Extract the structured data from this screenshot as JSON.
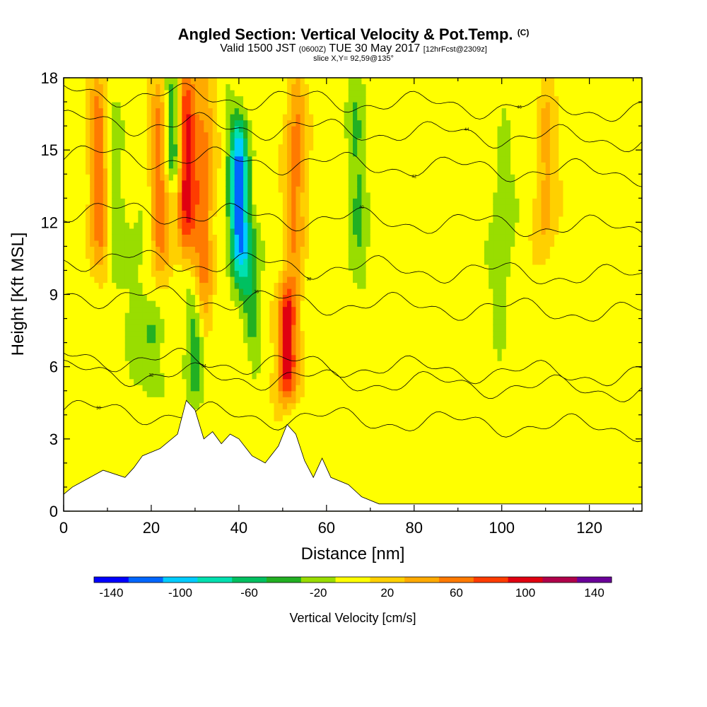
{
  "header": {
    "title": "Angled Section: Vertical Velocity & Pot.Temp.",
    "title_units": "(C)",
    "valid_main": "Valid 1500 JST",
    "valid_utc": "(0600Z)",
    "valid_date": "TUE 30 May 2017",
    "forecast": "[12hrFcst@2309z]",
    "slice": "slice X,Y= 92,59@135°"
  },
  "chart_data": {
    "type": "heatmap",
    "xlabel": "Distance [nm]",
    "ylabel": "Height [Kft MSL]",
    "xlim": [
      0,
      132
    ],
    "ylim": [
      0,
      18
    ],
    "x_ticks": [
      "0",
      "20",
      "40",
      "60",
      "80",
      "100",
      "120"
    ],
    "y_ticks": [
      "0",
      "3",
      "6",
      "9",
      "12",
      "15",
      "18"
    ],
    "colorbar": {
      "label": "Vertical Velocity [cm/s]",
      "tick_labels": [
        "-140",
        "-100",
        "-60",
        "-20",
        "20",
        "60",
        "100",
        "140"
      ],
      "levels": [
        -150,
        -130,
        -110,
        -90,
        -70,
        -50,
        -30,
        -10,
        10,
        30,
        50,
        70,
        90,
        110,
        130,
        150
      ],
      "colors": [
        "#0000ff",
        "#0066ff",
        "#00ccff",
        "#00e0b0",
        "#00c060",
        "#22b022",
        "#99dd00",
        "#ffff00",
        "#ffd000",
        "#ffaa00",
        "#ff7a00",
        "#ff3c00",
        "#e00010",
        "#b0004a",
        "#6a0099"
      ]
    },
    "vertical_velocity_features": [
      {
        "x": 8,
        "z_from": 10,
        "z_to": 18,
        "w": 60
      },
      {
        "x": 12,
        "z_from": 9,
        "z_to": 18,
        "w": -20
      },
      {
        "x": 17,
        "z_from": 6,
        "z_to": 12,
        "w": -20
      },
      {
        "x": 20,
        "z_from": 5,
        "z_to": 8,
        "w": -30
      },
      {
        "x": 22,
        "z_from": 10,
        "z_to": 18,
        "w": 60
      },
      {
        "x": 25,
        "z_from": 14,
        "z_to": 18,
        "w": -60
      },
      {
        "x": 28,
        "z_from": 11,
        "z_to": 18,
        "w": 100
      },
      {
        "x": 30,
        "z_from": 5,
        "z_to": 9,
        "w": -40
      },
      {
        "x": 32,
        "z_from": 8,
        "z_to": 18,
        "w": 60
      },
      {
        "x": 40,
        "z_from": 10,
        "z_to": 16,
        "w": -120
      },
      {
        "x": 43,
        "z_from": 7,
        "z_to": 12,
        "w": -40
      },
      {
        "x": 51,
        "z_from": 5,
        "z_to": 9,
        "w": 110
      },
      {
        "x": 53,
        "z_from": 10,
        "z_to": 18,
        "w": 60
      },
      {
        "x": 67,
        "z_from": 9,
        "z_to": 18,
        "w": -30
      },
      {
        "x": 100,
        "z_from": 8,
        "z_to": 15,
        "w": -30
      },
      {
        "x": 110,
        "z_from": 11,
        "z_to": 17,
        "w": 40
      }
    ],
    "theta_contours": [
      {
        "label": "30",
        "level_kft": 4.2
      },
      {
        "label": "32",
        "level_kft": 5.8
      },
      {
        "label": "34",
        "level_kft": 6.4
      },
      {
        "label": "36",
        "level_kft": 9.0
      },
      {
        "label": "38",
        "level_kft": 10.5
      },
      {
        "label": "40",
        "level_kft": 12.5
      },
      {
        "label": "42",
        "level_kft": 14.8
      },
      {
        "label": "44",
        "level_kft": 16.2
      },
      {
        "label": "46",
        "level_kft": 17.4
      }
    ],
    "terrain": [
      [
        0,
        0.7
      ],
      [
        2,
        1.0
      ],
      [
        9,
        1.7
      ],
      [
        14,
        1.4
      ],
      [
        16,
        1.8
      ],
      [
        18,
        2.3
      ],
      [
        22,
        2.6
      ],
      [
        26,
        3.2
      ],
      [
        28,
        4.6
      ],
      [
        30,
        4.2
      ],
      [
        32,
        3.0
      ],
      [
        34,
        3.3
      ],
      [
        36,
        2.8
      ],
      [
        38,
        3.2
      ],
      [
        40,
        3.0
      ],
      [
        43,
        2.3
      ],
      [
        46,
        2.0
      ],
      [
        49,
        2.7
      ],
      [
        51,
        3.6
      ],
      [
        53,
        3.2
      ],
      [
        55,
        2.1
      ],
      [
        57,
        1.4
      ],
      [
        59,
        2.2
      ],
      [
        61,
        1.4
      ],
      [
        65,
        1.1
      ],
      [
        68,
        0.6
      ],
      [
        72,
        0.3
      ],
      [
        132,
        0.3
      ]
    ]
  }
}
